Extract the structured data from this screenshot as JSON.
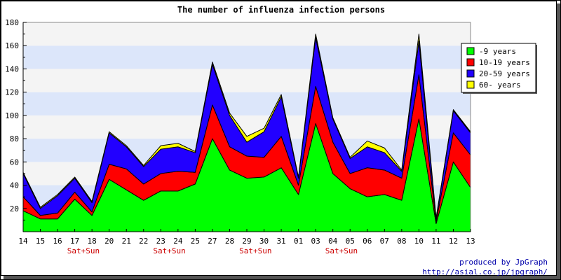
{
  "colors": {
    "background": "#ffffff",
    "band_light": "#f4f4f4",
    "band_blue": "#dce6fa",
    "axis": "#000000",
    "weekend_label": "#cc0000",
    "credit": "#0000aa"
  },
  "chart_data": {
    "type": "area",
    "stacked": true,
    "title": "The number of influenza infection persons",
    "xlabel": "",
    "ylabel": "",
    "ylim": [
      0,
      180
    ],
    "yticks": [
      20,
      40,
      60,
      80,
      100,
      120,
      140,
      160,
      180
    ],
    "grid": true,
    "legend_position": "top-right",
    "categories": [
      "14",
      "15",
      "16",
      "17",
      "18",
      "20",
      "21",
      "22",
      "23",
      "24",
      "25",
      "27",
      "28",
      "29",
      "30",
      "31",
      "01",
      "03",
      "04",
      "05",
      "06",
      "07",
      "08",
      "10",
      "11",
      "12",
      "13"
    ],
    "weekend_marks": [
      {
        "category": "17",
        "label": "Sat+Sun"
      },
      {
        "category": "23",
        "label": "Sat+Sun"
      },
      {
        "category": "29",
        "label": "Sat+Sun"
      },
      {
        "category": "04",
        "label": "Sat+Sun"
      }
    ],
    "series": [
      {
        "name": "-9 years",
        "color": "#00ff00",
        "values": [
          18,
          11,
          11,
          28,
          14,
          45,
          36,
          27,
          35,
          35,
          41,
          80,
          53,
          46,
          47,
          55,
          32,
          93,
          50,
          37,
          30,
          32,
          27,
          97,
          7,
          60,
          38
        ]
      },
      {
        "name": "10-19 years",
        "color": "#ff0000",
        "values": [
          12,
          3,
          5,
          6,
          3,
          13,
          18,
          14,
          15,
          17,
          10,
          29,
          20,
          19,
          17,
          27,
          8,
          32,
          27,
          13,
          25,
          21,
          19,
          38,
          2,
          25,
          28
        ]
      },
      {
        "name": "20-59 years",
        "color": "#2200ff",
        "values": [
          20,
          6,
          15,
          12,
          8,
          27,
          19,
          15,
          21,
          21,
          17,
          35,
          27,
          12,
          22,
          34,
          6,
          42,
          20,
          13,
          18,
          15,
          6,
          29,
          2,
          19,
          19
        ]
      },
      {
        "name": "60- years",
        "color": "#ffff00",
        "values": [
          1,
          1,
          1,
          1,
          1,
          1,
          1,
          1,
          3,
          3,
          1,
          2,
          2,
          5,
          3,
          2,
          1,
          3,
          1,
          1,
          5,
          4,
          1,
          6,
          1,
          1,
          1
        ]
      }
    ]
  },
  "credit": {
    "line1": "produced by JpGraph",
    "line2": "http://asial.co.jp/jpgraph/"
  }
}
